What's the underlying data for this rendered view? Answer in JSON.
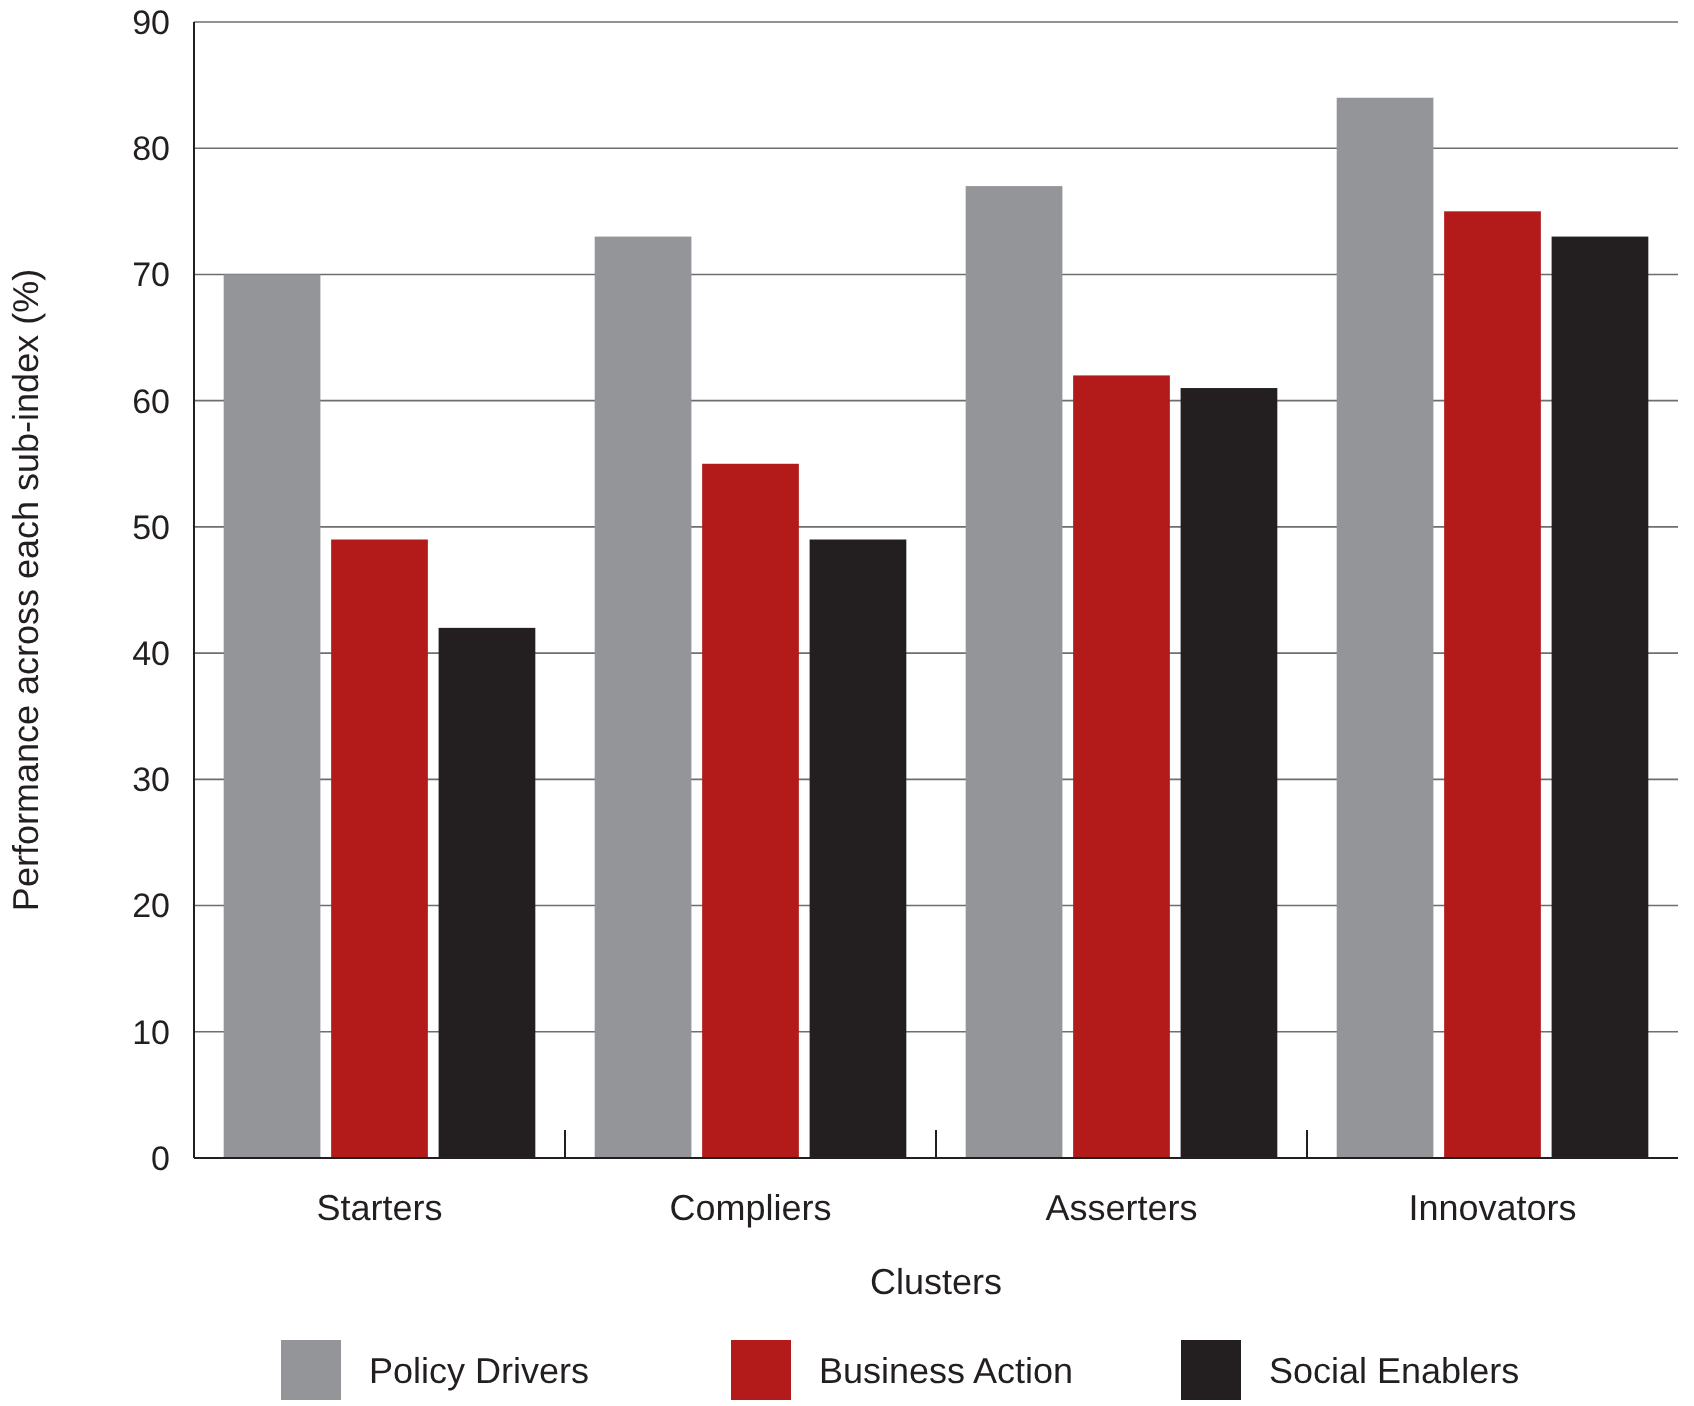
{
  "chart_data": {
    "type": "bar",
    "xlabel": "Clusters",
    "ylabel": "Performance across each sub-index (%)",
    "categories": [
      "Starters",
      "Compliers",
      "Asserters",
      "Innovators"
    ],
    "series": [
      {
        "name": "Policy Drivers",
        "color": "#939598",
        "values": [
          70,
          73,
          77,
          84
        ]
      },
      {
        "name": "Business Action",
        "color": "#b31b1b",
        "values": [
          49,
          55,
          62,
          75
        ]
      },
      {
        "name": "Social Enablers",
        "color": "#231f20",
        "values": [
          42,
          49,
          61,
          73
        ]
      }
    ],
    "ylim": [
      0,
      90
    ],
    "yticks": [
      0,
      10,
      20,
      30,
      40,
      50,
      60,
      70,
      80,
      90
    ],
    "grid": "y",
    "legend": "bottom"
  }
}
